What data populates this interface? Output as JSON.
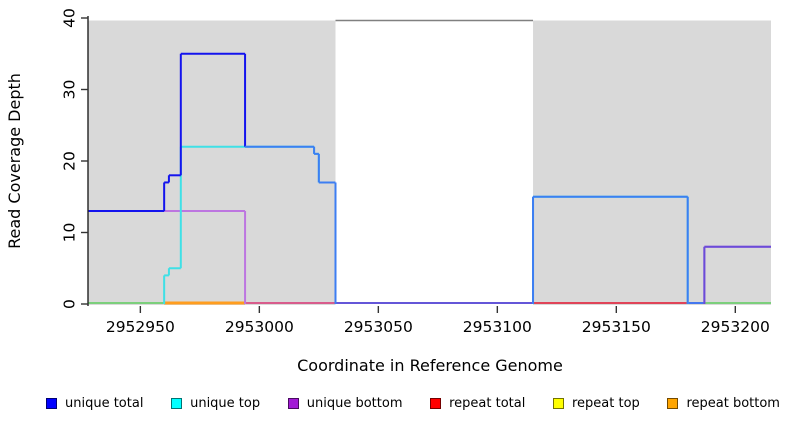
{
  "chart_data": {
    "type": "line",
    "subtype": "step-coverage",
    "title": "",
    "xlabel": "Coordinate in Reference Genome",
    "ylabel": "Read Coverage Depth",
    "xlim": [
      2952928,
      2953215
    ],
    "ylim": [
      0,
      40
    ],
    "x_ticks": [
      2952950,
      2953000,
      2953050,
      2953100,
      2953150,
      2953200
    ],
    "y_ticks": [
      0,
      10,
      20,
      30,
      40
    ],
    "grid": false,
    "legend_position": "bottom",
    "x_end": 2953215,
    "background_regions": [
      {
        "name": "unique-region-1",
        "x1": 2952928,
        "x2": 2953032,
        "color": "#d9d9d9"
      },
      {
        "name": "unique-region-2",
        "x1": 2953115,
        "x2": 2953215,
        "color": "#d9d9d9"
      }
    ],
    "gap_top_border": {
      "x1": 2953032,
      "x2": 2953115,
      "y": 40,
      "color": "#808080"
    },
    "series": [
      {
        "name": "unique bottom",
        "color": "#bd76e0",
        "steps": [
          [
            2952928,
            13
          ],
          [
            2952994,
            0
          ],
          [
            2953187,
            8
          ]
        ]
      },
      {
        "name": "unique top",
        "color": "#3fe0e6",
        "steps": [
          [
            2952928,
            0
          ],
          [
            2952960,
            4
          ],
          [
            2952962,
            5
          ],
          [
            2952967,
            22
          ],
          [
            2953023,
            21
          ],
          [
            2953025,
            17
          ],
          [
            2953032,
            0
          ],
          [
            2953115,
            15
          ],
          [
            2953180,
            0
          ]
        ]
      },
      {
        "name": "unique total",
        "color": "#1414ee",
        "steps": [
          [
            2952928,
            13
          ],
          [
            2952960,
            17
          ],
          [
            2952962,
            18
          ],
          [
            2952967,
            35
          ],
          [
            2952994,
            22
          ],
          [
            2953023,
            21
          ],
          [
            2953025,
            17
          ],
          [
            2953032,
            0
          ],
          [
            2953115,
            15
          ],
          [
            2953180,
            0
          ],
          [
            2953187,
            8
          ]
        ],
        "segment_colors": {
          "2952994": "#3d7ef2",
          "2953023": "#3d7ef2",
          "2953025": "#3d7ef2",
          "2953115": "#3d7ef2",
          "2953187": "#6a4cd8"
        }
      },
      {
        "name": "repeat total",
        "color": "#ff0000",
        "steps": [
          [
            2952928,
            0
          ]
        ]
      },
      {
        "name": "repeat top",
        "color": "#ffff00",
        "steps": [
          [
            2952928,
            0
          ]
        ]
      },
      {
        "name": "repeat bottom",
        "color": "#ffa500",
        "steps": [
          [
            2952928,
            0
          ]
        ]
      }
    ],
    "zero_line_segments": [
      {
        "x1": 2952928,
        "x2": 2952960,
        "color": "#7ccf7c",
        "width": 2
      },
      {
        "x1": 2952960,
        "x2": 2952994,
        "color": "#ff9d1e",
        "width": 3
      },
      {
        "x1": 2952994,
        "x2": 2953032,
        "color": "#d85c8c",
        "width": 2
      },
      {
        "x1": 2953032,
        "x2": 2953115,
        "color": "#6456d8",
        "width": 2
      },
      {
        "x1": 2953115,
        "x2": 2953180,
        "color": "#e04458",
        "width": 2
      },
      {
        "x1": 2953180,
        "x2": 2953187,
        "color": "#4477ee",
        "width": 2
      },
      {
        "x1": 2953187,
        "x2": 2953215,
        "color": "#7ccf7c",
        "width": 2
      }
    ]
  },
  "axes": {
    "y_label": "Read Coverage Depth",
    "x_label": "Coordinate in Reference Genome"
  },
  "legend": {
    "items": [
      {
        "label": "unique total",
        "color": "#0000ff"
      },
      {
        "label": "unique top",
        "color": "#00ffff"
      },
      {
        "label": "unique bottom",
        "color": "#a21ad6"
      },
      {
        "label": "repeat total",
        "color": "#ff0000"
      },
      {
        "label": "repeat top",
        "color": "#ffff00"
      },
      {
        "label": "repeat bottom",
        "color": "#ffa500"
      }
    ]
  }
}
